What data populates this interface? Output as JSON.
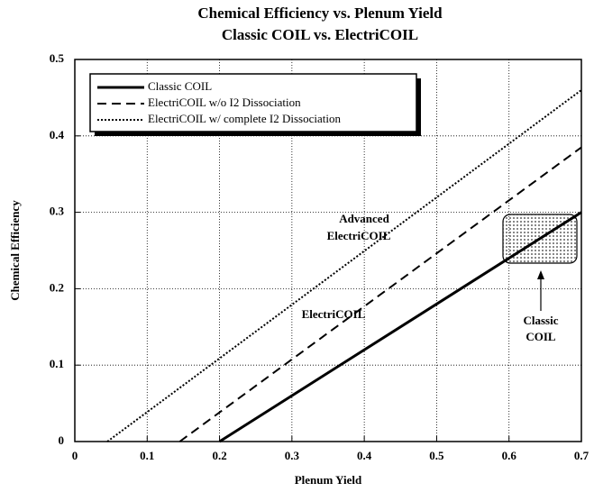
{
  "chart_data": {
    "type": "line",
    "title": "Chemical Efficiency vs. Plenum Yield",
    "subtitle": "Classic COIL vs. ElectriCOIL",
    "x_label": "Plenum Yield",
    "y_label": "Chemical Efficiency",
    "xlim": [
      0,
      0.7
    ],
    "ylim": [
      0,
      0.5
    ],
    "xticks": [
      0,
      0.1,
      0.2,
      0.3,
      0.4,
      0.5,
      0.6,
      0.7
    ],
    "yticks": [
      0,
      0.1,
      0.2,
      0.3,
      0.4,
      0.5
    ],
    "grid": true,
    "legend": "upper left",
    "series": [
      {
        "name": "Classic COIL",
        "color": "#000000",
        "line_style": "solid",
        "x": [
          0.2,
          0.7
        ],
        "values": [
          0,
          0.3
        ]
      },
      {
        "name": "ElectriCOIL w/o I2 Dissociation",
        "color": "#000000",
        "line_style": "dashed",
        "x": [
          0.145,
          0.7
        ],
        "values": [
          0,
          0.385
        ]
      },
      {
        "name": "ElectriCOIL w/ complete I2 Dissociation",
        "color": "#000000",
        "line_style": "dotted",
        "x": [
          0.045,
          0.7
        ],
        "values": [
          0,
          0.46
        ]
      }
    ],
    "annotations": [
      "Advanced",
      "ElectriCOIL",
      "ElectriCOIL",
      "Classic",
      "COIL"
    ]
  }
}
